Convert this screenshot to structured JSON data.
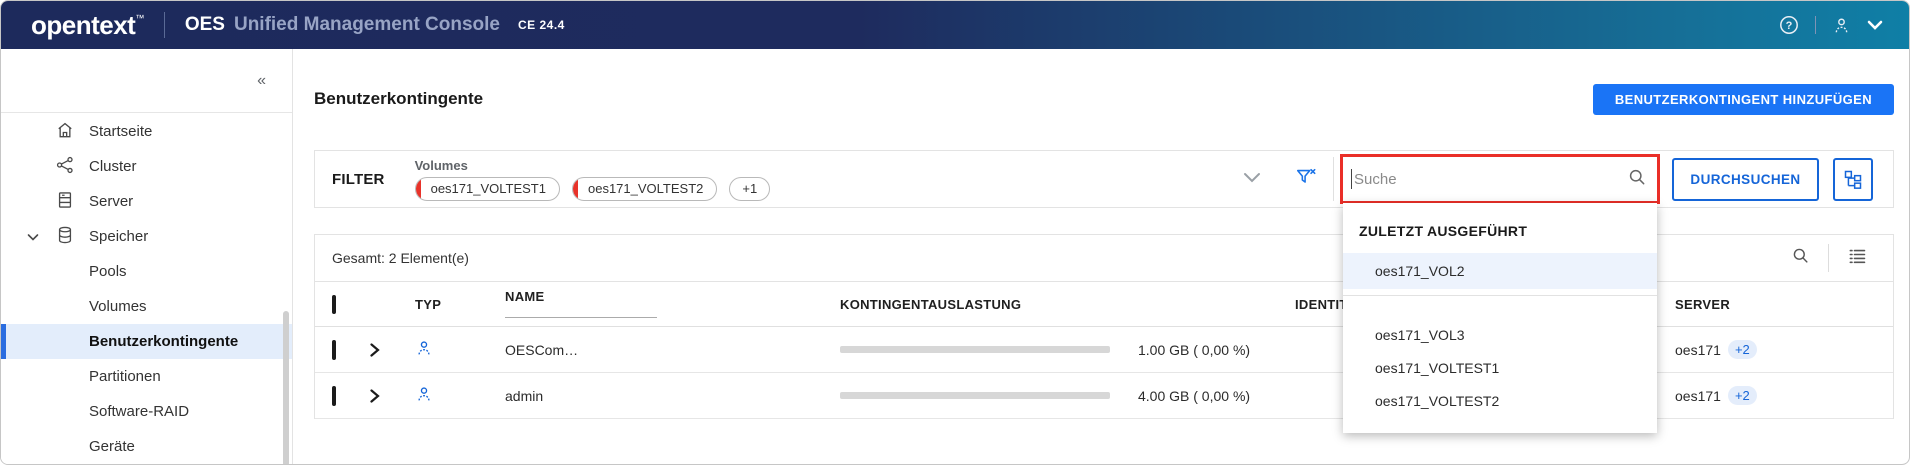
{
  "topbar": {
    "logo": "opentext",
    "trademark": "™",
    "product_bold": "OES",
    "product_rest": "Unified Management Console",
    "version": "CE 24.4"
  },
  "sidebar": {
    "collapse_glyph": "«",
    "items": [
      {
        "label": "Startseite",
        "icon": "home-icon",
        "level": 0,
        "active": false
      },
      {
        "label": "Cluster",
        "icon": "cluster-icon",
        "level": 0,
        "active": false
      },
      {
        "label": "Server",
        "icon": "server-icon",
        "level": 0,
        "active": false
      },
      {
        "label": "Speicher",
        "icon": "storage-icon",
        "level": 0,
        "active": false,
        "expanded": true
      },
      {
        "label": "Pools",
        "level": 1,
        "active": false
      },
      {
        "label": "Volumes",
        "level": 1,
        "active": false
      },
      {
        "label": "Benutzerkontingente",
        "level": 1,
        "active": true
      },
      {
        "label": "Partitionen",
        "level": 1,
        "active": false
      },
      {
        "label": "Software-RAID",
        "level": 1,
        "active": false
      },
      {
        "label": "Geräte",
        "level": 1,
        "active": false
      }
    ]
  },
  "page": {
    "title": "Benutzerkontingente",
    "add_button": "BENUTZERKONTINGENT HINZUFÜGEN"
  },
  "filter": {
    "label": "FILTER",
    "group_label": "Volumes",
    "chips": [
      "oes171_VOLTEST1",
      "oes171_VOLTEST2"
    ],
    "more_chip": "+1"
  },
  "search": {
    "placeholder": "Suche",
    "browse_button": "DURCHSUCHEN"
  },
  "dropdown": {
    "header": "ZULETZT AUSGEFÜHRT",
    "recent": [
      "oes171_VOL2"
    ],
    "options": [
      "oes171_VOL3",
      "oes171_VOLTEST1",
      "oes171_VOLTEST2"
    ]
  },
  "table": {
    "summary": "Gesamt: 2 Element(e)",
    "columns": {
      "typ": "TYP",
      "name": "NAME",
      "quota": "KONTINGENTAUSLASTUNG",
      "ide": "IDENTITÄT",
      "server": "SERVER"
    },
    "rows": [
      {
        "name": "OESCom…",
        "quota_value": "1.00 GB ( 0,00 %)",
        "quota_percent": 0,
        "server": "oes171",
        "server_more": "+2"
      },
      {
        "name": "admin",
        "quota_value": "4.00 GB ( 0,00 %)",
        "quota_percent": 0,
        "server": "oes171",
        "server_more": "+2"
      }
    ]
  },
  "colors": {
    "topbar_left": "#1d2a5c",
    "topbar_right": "#0f7fa6",
    "accent_solid": "#1a74f6",
    "accent_outline": "#1565d8",
    "annotation_red": "#ea2f28",
    "chip_bar_red": "#e8332a",
    "active_nav_bg": "#e3edfb"
  }
}
